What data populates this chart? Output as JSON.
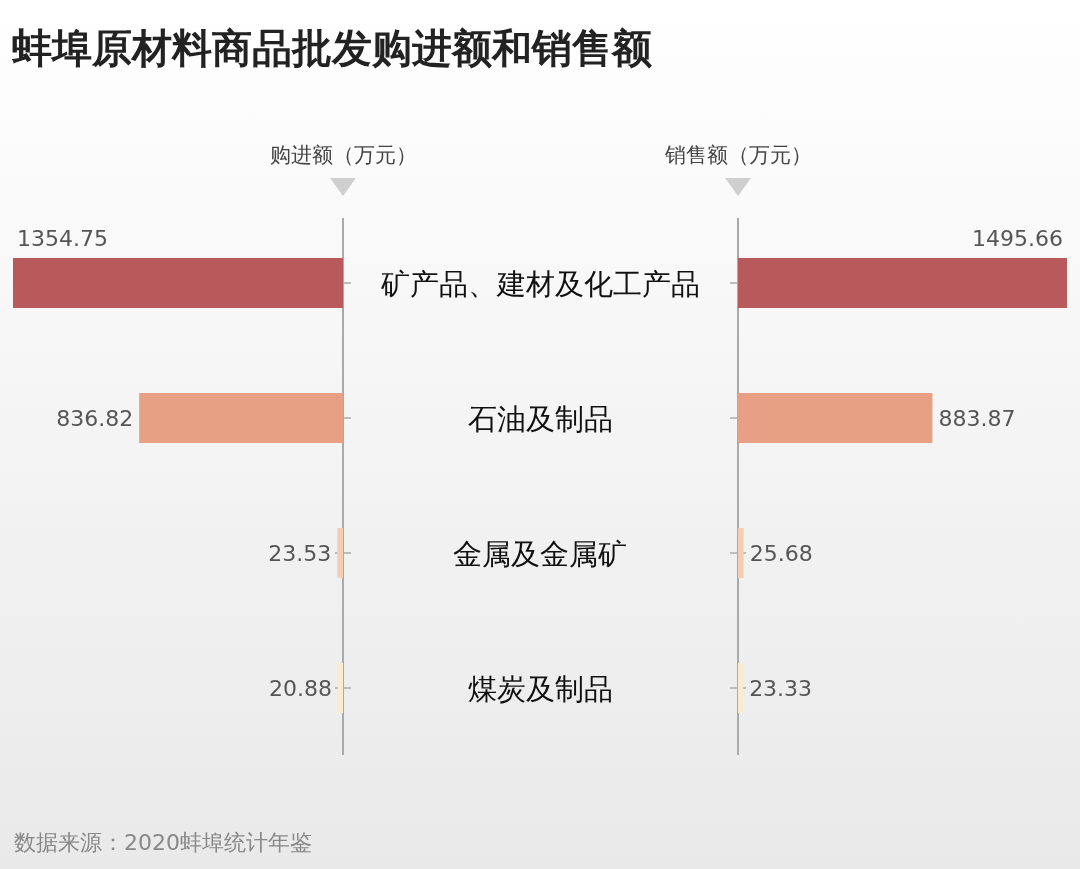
{
  "chart_data": [
    {
      "type": "bar",
      "orientation": "horizontal",
      "title": "蚌埠原材料商品批发购进额和销售额",
      "xlabel": "购进额（万元）",
      "categories": [
        "矿产品、建材及化工产品",
        "石油及制品",
        "金属及金属矿",
        "煤炭及制品"
      ],
      "colors": [
        "#b85a5c",
        "#e8a085",
        "#f0cfb4",
        "#f6ecd2"
      ],
      "values": [
        1354.75,
        836.82,
        23.53,
        20.88
      ],
      "data_labels": true,
      "annotations": [
        "数据来源：2020蚌埠统计年鉴"
      ]
    },
    {
      "type": "bar",
      "orientation": "horizontal",
      "xlabel": "销售额（万元）",
      "tick_labels": false,
      "categories": [
        "矿产品、建材及化工产品",
        "石油及制品",
        "金属及金属矿",
        "煤炭及制品"
      ],
      "colors": [
        "#b85a5c",
        "#e8a085",
        "#f0cfb4",
        "#f6ecd2"
      ],
      "values": [
        1495.66,
        883.87,
        25.68,
        23.33
      ],
      "data_labels": true
    }
  ]
}
